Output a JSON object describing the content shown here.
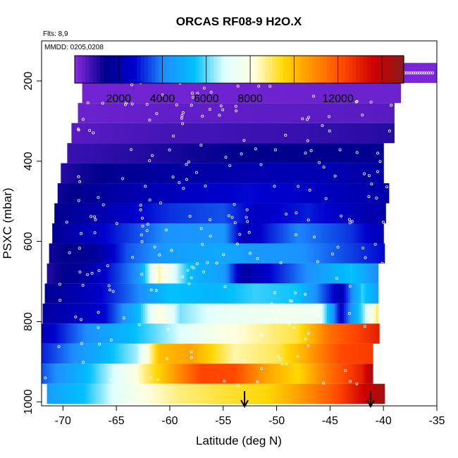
{
  "chart_data": {
    "type": "heatmap",
    "title": "ORCAS RF08-9 H2O.X",
    "flights_note": "Flts: 8,9",
    "date_note": "MMDD: 0205,0208",
    "xlabel": "Latitude (deg N)",
    "ylabel": "PSXC (mbar)",
    "xlim": [
      -72,
      -35
    ],
    "ylim": [
      1010,
      100
    ],
    "x_ticks": [
      "-70",
      "-65",
      "-60",
      "-55",
      "-50",
      "-45",
      "-40",
      "-35"
    ],
    "x_tick_values": [
      -70,
      -65,
      -60,
      -55,
      -50,
      -45,
      -40,
      -35
    ],
    "y_ticks": [
      "200",
      "400",
      "600",
      "800",
      "1000"
    ],
    "y_tick_values": [
      200,
      400,
      600,
      800,
      1000
    ],
    "colorbar": {
      "range": [
        0,
        15000
      ],
      "labels": [
        "2000",
        "4000",
        "6000",
        "8000",
        "12000"
      ],
      "label_values": [
        2000,
        4000,
        6000,
        8000,
        12000
      ],
      "colors": [
        "#8a2be2",
        "#00008b",
        "#0000cd",
        "#1e90ff",
        "#00bfff",
        "#e0ffff",
        "#ffffe0",
        "#ffd700",
        "#ff8c00",
        "#ff4500",
        "#cc0000",
        "#8b1a1a"
      ]
    },
    "markers": [
      {
        "latitude": -53.0,
        "label": "arrow"
      },
      {
        "latitude": -41.2,
        "label": "arrow"
      }
    ],
    "layers": [
      {
        "p": 180,
        "start": -67.8,
        "values": [
          [
            -67.8,
            150
          ],
          [
            -35.0,
            150
          ]
        ]
      },
      {
        "p": 230,
        "start": -68.2,
        "values": [
          [
            -68.2,
            250
          ],
          [
            -38.5,
            300
          ]
        ]
      },
      {
        "p": 280,
        "start": -68.6,
        "values": [
          [
            -68.6,
            300
          ],
          [
            -60,
            400
          ],
          [
            -50,
            450
          ],
          [
            -39,
            500
          ]
        ]
      },
      {
        "p": 330,
        "start": -69.2,
        "values": [
          [
            -69.2,
            500
          ],
          [
            -60,
            700
          ],
          [
            -50,
            800
          ],
          [
            -39,
            1000
          ]
        ]
      },
      {
        "p": 380,
        "start": -69.6,
        "values": [
          [
            -69.6,
            800
          ],
          [
            -63,
            1000
          ],
          [
            -58,
            1200
          ],
          [
            -52,
            1400
          ],
          [
            -46,
            1400
          ],
          [
            -40,
            1500
          ]
        ]
      },
      {
        "p": 430,
        "start": -70.2,
        "values": [
          [
            -70.2,
            1000
          ],
          [
            -65,
            1500
          ],
          [
            -60,
            1800
          ],
          [
            -55,
            2000
          ],
          [
            -50,
            2200
          ],
          [
            -45,
            2200
          ],
          [
            -40,
            1800
          ]
        ]
      },
      {
        "p": 480,
        "start": -70.5,
        "values": [
          [
            -70.5,
            1200
          ],
          [
            -64,
            2000
          ],
          [
            -58,
            2500
          ],
          [
            -53,
            2800
          ],
          [
            -48,
            2600
          ],
          [
            -43,
            2200
          ],
          [
            -39.5,
            2000
          ]
        ]
      },
      {
        "p": 530,
        "start": -70.8,
        "values": [
          [
            -70.8,
            1400
          ],
          [
            -66,
            2200
          ],
          [
            -60,
            3200
          ],
          [
            -55,
            3500
          ],
          [
            -52,
            2500
          ],
          [
            -47,
            3000
          ],
          [
            -42,
            2200
          ],
          [
            -39.8,
            2000
          ]
        ]
      },
      {
        "p": 580,
        "start": -71.0,
        "values": [
          [
            -71.0,
            1500
          ],
          [
            -65,
            3000
          ],
          [
            -60,
            4200
          ],
          [
            -55,
            4300
          ],
          [
            -53,
            2200
          ],
          [
            -48,
            4000
          ],
          [
            -43,
            3200
          ],
          [
            -40,
            2200
          ]
        ]
      },
      {
        "p": 630,
        "start": -71.3,
        "values": [
          [
            -71.3,
            1200
          ],
          [
            -67,
            1600
          ],
          [
            -64,
            3500
          ],
          [
            -60,
            4500
          ],
          [
            -55,
            4800
          ],
          [
            -52,
            4300
          ],
          [
            -48,
            4200
          ],
          [
            -44,
            3500
          ],
          [
            -40,
            2800
          ]
        ]
      },
      {
        "p": 680,
        "start": -71.5,
        "values": [
          [
            -71.5,
            1000
          ],
          [
            -68,
            1800
          ],
          [
            -63,
            4200
          ],
          [
            -61,
            8500
          ],
          [
            -58,
            5200
          ],
          [
            -55,
            4500
          ],
          [
            -53,
            1800
          ],
          [
            -48,
            3800
          ],
          [
            -43,
            5500
          ],
          [
            -40.5,
            4000
          ]
        ]
      },
      {
        "p": 730,
        "start": -71.7,
        "values": [
          [
            -71.7,
            1500
          ],
          [
            -67,
            2500
          ],
          [
            -63,
            4000
          ],
          [
            -60,
            5500
          ],
          [
            -56,
            5200
          ],
          [
            -52,
            5800
          ],
          [
            -48,
            5500
          ],
          [
            -44,
            2200
          ],
          [
            -42,
            5800
          ],
          [
            -40.5,
            4500
          ]
        ]
      },
      {
        "p": 780,
        "start": -71.9,
        "values": [
          [
            -71.9,
            1800
          ],
          [
            -66,
            2800
          ],
          [
            -63,
            5200
          ],
          [
            -61,
            8200
          ],
          [
            -59,
            6200
          ],
          [
            -55,
            7200
          ],
          [
            -50,
            7600
          ],
          [
            -46,
            7500
          ],
          [
            -44,
            2500
          ],
          [
            -42,
            6000
          ],
          [
            -40.5,
            9000
          ]
        ]
      },
      {
        "p": 830,
        "start": -72.0,
        "values": [
          [
            -72.0,
            2200
          ],
          [
            -68,
            4000
          ],
          [
            -64,
            5200
          ],
          [
            -60,
            6500
          ],
          [
            -56,
            7800
          ],
          [
            -52,
            8500
          ],
          [
            -48,
            9200
          ],
          [
            -45,
            11500
          ],
          [
            -42,
            12500
          ],
          [
            -40.5,
            13000
          ]
        ]
      },
      {
        "p": 880,
        "start": -72.0,
        "values": [
          [
            -72.0,
            3000
          ],
          [
            -67,
            4800
          ],
          [
            -63,
            6500
          ],
          [
            -61,
            10000
          ],
          [
            -58,
            10500
          ],
          [
            -54,
            8500
          ],
          [
            -50,
            9000
          ],
          [
            -47,
            10500
          ],
          [
            -44,
            12200
          ],
          [
            -41,
            12500
          ]
        ]
      },
      {
        "p": 930,
        "start": -72.0,
        "values": [
          [
            -72.0,
            3500
          ],
          [
            -68,
            5200
          ],
          [
            -64,
            7500
          ],
          [
            -62,
            9000
          ],
          [
            -59,
            11000
          ],
          [
            -57,
            12300
          ],
          [
            -54,
            12200
          ],
          [
            -51,
            10500
          ],
          [
            -48,
            9500
          ],
          [
            -45,
            11500
          ],
          [
            -42,
            13000
          ],
          [
            -41,
            14500
          ]
        ]
      },
      {
        "p": 980,
        "start": -71.5,
        "values": [
          [
            -71.5,
            4500
          ],
          [
            -68,
            5500
          ],
          [
            -65,
            7000
          ],
          [
            -62,
            8200
          ],
          [
            -59,
            8800
          ],
          [
            -55,
            9200
          ],
          [
            -51,
            9500
          ],
          [
            -48,
            10500
          ],
          [
            -45,
            11800
          ],
          [
            -42,
            13500
          ],
          [
            -40,
            14500
          ]
        ]
      }
    ]
  }
}
